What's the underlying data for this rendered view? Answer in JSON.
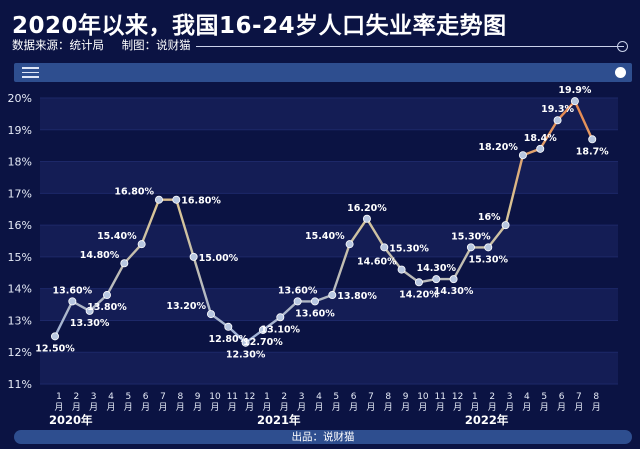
{
  "header": {
    "title": "2020年以来，我国16-24岁人口失业率走势图",
    "source": "数据来源：统计局",
    "maker": "制图：说财猫"
  },
  "footer": {
    "text": "出品：说财猫"
  },
  "colors": {
    "background": "#0b1343",
    "band": "#141d55",
    "line_start": "#9fb3da",
    "line_mid": "#d9c596",
    "line_end": "#e8844a",
    "marker": "#b8c7e0",
    "toolbar": "#2e4e8f"
  },
  "chart_data": {
    "type": "line",
    "ylim": [
      11,
      20
    ],
    "yticks": [
      "11%",
      "12%",
      "13%",
      "14%",
      "15%",
      "16%",
      "17%",
      "18%",
      "19%",
      "20%"
    ],
    "grid": "horizontal bands",
    "month_labels": [
      "1",
      "2",
      "3",
      "4",
      "5",
      "6",
      "7",
      "8",
      "9",
      "10",
      "11",
      "12",
      "1",
      "2",
      "3",
      "4",
      "5",
      "6",
      "7",
      "8",
      "9",
      "10",
      "11",
      "12",
      "1",
      "2",
      "3",
      "4",
      "5",
      "6",
      "7",
      "8"
    ],
    "month_unit": "月",
    "year_labels": [
      {
        "text": "2020年",
        "index": 0
      },
      {
        "text": "2021年",
        "index": 12
      },
      {
        "text": "2022年",
        "index": 24
      }
    ],
    "values": [
      12.5,
      13.6,
      13.3,
      13.8,
      14.8,
      15.4,
      16.8,
      16.8,
      15.0,
      13.2,
      12.8,
      12.3,
      12.7,
      13.1,
      13.6,
      13.6,
      13.8,
      15.4,
      16.2,
      15.3,
      14.6,
      14.2,
      14.3,
      14.3,
      15.3,
      15.3,
      16.0,
      18.2,
      18.4,
      19.3,
      19.9,
      18.7
    ],
    "labels": [
      {
        "i": 0,
        "text": "12.50%",
        "pos": "below"
      },
      {
        "i": 1,
        "text": "13.60%",
        "pos": "above"
      },
      {
        "i": 2,
        "text": "13.30%",
        "pos": "below"
      },
      {
        "i": 3,
        "text": "13.80%",
        "pos": "below"
      },
      {
        "i": 4,
        "text": "14.80%",
        "pos": "left"
      },
      {
        "i": 5,
        "text": "15.40%",
        "pos": "left"
      },
      {
        "i": 6,
        "text": "16.80%",
        "pos": "left"
      },
      {
        "i": 7,
        "text": "16.80%",
        "pos": "right"
      },
      {
        "i": 8,
        "text": "15.00%",
        "pos": "right"
      },
      {
        "i": 9,
        "text": "13.20%",
        "pos": "left"
      },
      {
        "i": 10,
        "text": "12.80%",
        "pos": "below"
      },
      {
        "i": 11,
        "text": "12.30%",
        "pos": "below"
      },
      {
        "i": 12,
        "text": "12.70%",
        "pos": "below"
      },
      {
        "i": 13,
        "text": "13.10%",
        "pos": "below"
      },
      {
        "i": 14,
        "text": "13.60%",
        "pos": "above"
      },
      {
        "i": 15,
        "text": "13.60%",
        "pos": "below"
      },
      {
        "i": 16,
        "text": "13.80%",
        "pos": "right"
      },
      {
        "i": 17,
        "text": "15.40%",
        "pos": "left"
      },
      {
        "i": 18,
        "text": "16.20%",
        "pos": "above"
      },
      {
        "i": 19,
        "text": "15.30%",
        "pos": "right"
      },
      {
        "i": 20,
        "text": "14.60%",
        "pos": "left"
      },
      {
        "i": 21,
        "text": "14.20%",
        "pos": "below"
      },
      {
        "i": 22,
        "text": "14.30%",
        "pos": "above"
      },
      {
        "i": 23,
        "text": "14.30%",
        "pos": "below"
      },
      {
        "i": 24,
        "text": "15.30%",
        "pos": "above"
      },
      {
        "i": 25,
        "text": "15.30%",
        "pos": "below"
      },
      {
        "i": 26,
        "text": "16%",
        "pos": "left"
      },
      {
        "i": 27,
        "text": "18.20%",
        "pos": "left"
      },
      {
        "i": 28,
        "text": "18.4%",
        "pos": "above"
      },
      {
        "i": 29,
        "text": "19.3%",
        "pos": "above"
      },
      {
        "i": 30,
        "text": "19.9%",
        "pos": "above"
      },
      {
        "i": 31,
        "text": "18.7%",
        "pos": "below"
      }
    ]
  }
}
